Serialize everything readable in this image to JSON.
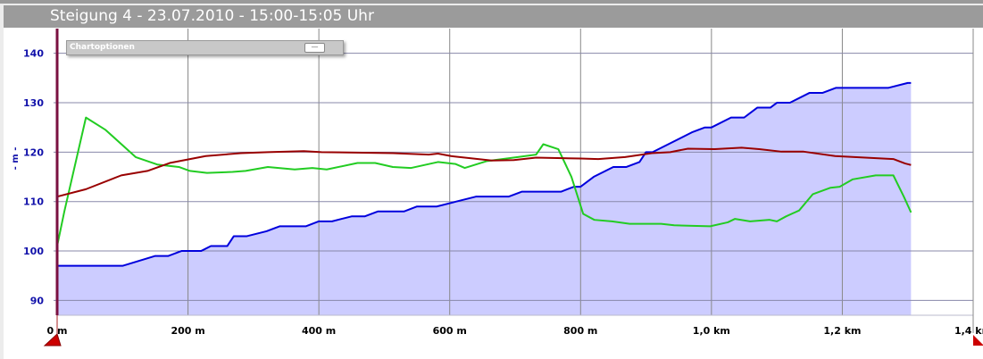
{
  "header": {
    "title": "Steigung 4 - 23.07.2010 - 15:00-15:05 Uhr"
  },
  "chart_options": {
    "label": "Chartoptionen",
    "collapse_button": "—"
  },
  "chart_data": {
    "type": "line",
    "title": "",
    "ylabel": "- m -",
    "xlim": [
      0,
      1400
    ],
    "ylim": [
      87,
      145
    ],
    "x_ticks": [
      0,
      200,
      400,
      600,
      800,
      1000,
      1200,
      1400
    ],
    "x_tick_labels": [
      "0 m",
      "200 m",
      "400 m",
      "600 m",
      "800 m",
      "1,0 km",
      "1,2 km",
      "1,4 km"
    ],
    "y_ticks": [
      90,
      100,
      110,
      120,
      130,
      140
    ],
    "y_tick_labels": [
      "90",
      "100",
      "110",
      "120",
      "130",
      "140"
    ],
    "grid": true,
    "colors": {
      "elevation_line": "#0000dd",
      "elevation_fill": "#ccccff",
      "green": "#22cc22",
      "red": "#990000",
      "ylabel": "#1111aa"
    },
    "series": [
      {
        "type": "area",
        "color": "#0000dd",
        "x": [
          0,
          100,
          150,
          170,
          190,
          220,
          235,
          260,
          270,
          290,
          320,
          340,
          380,
          400,
          420,
          450,
          470,
          490,
          530,
          550,
          580,
          610,
          640,
          690,
          710,
          770,
          790,
          800,
          820,
          850,
          870,
          890,
          900,
          910,
          970,
          990,
          1000,
          1030,
          1050,
          1070,
          1090,
          1100,
          1120,
          1150,
          1170,
          1190,
          1220,
          1270,
          1300,
          1305
        ],
        "y": [
          97,
          97,
          99,
          99,
          100,
          100,
          101,
          101,
          103,
          103,
          104,
          105,
          105,
          106,
          106,
          107,
          107,
          108,
          108,
          109,
          109,
          110,
          111,
          111,
          112,
          112,
          113,
          113,
          115,
          117,
          117,
          118,
          120,
          120,
          124,
          125,
          125,
          127,
          127,
          129,
          129,
          130,
          130,
          132,
          132,
          133,
          133,
          133,
          134,
          134
        ]
      },
      {
        "type": "line",
        "color": "#22cc22",
        "x": [
          0,
          11,
          44,
          74,
          120,
          153,
          186,
          203,
          229,
          268,
          288,
          322,
          363,
          390,
          412,
          459,
          486,
          513,
          541,
          582,
          609,
          623,
          657,
          704,
          732,
          743,
          766,
          786,
          804,
          821,
          848,
          875,
          923,
          943,
          971,
          998,
          1025,
          1036,
          1059,
          1089,
          1100,
          1114,
          1134,
          1155,
          1182,
          1196,
          1216,
          1251,
          1278,
          1294,
          1305
        ],
        "y": [
          101,
          108,
          127,
          124.5,
          119,
          117.5,
          117,
          116.2,
          115.8,
          116,
          116.2,
          117,
          116.5,
          116.8,
          116.5,
          117.8,
          117.8,
          117,
          116.8,
          118,
          117.6,
          116.8,
          118.2,
          119,
          119.5,
          121.6,
          120.6,
          115,
          107.5,
          106.3,
          106,
          105.5,
          105.5,
          105.2,
          105.1,
          105,
          105.8,
          106.5,
          106,
          106.3,
          106,
          107,
          108.2,
          111.5,
          112.8,
          113,
          114.5,
          115.3,
          115.3,
          111,
          107.8
        ]
      },
      {
        "type": "line",
        "color": "#990000",
        "x": [
          0,
          44,
          98,
          138,
          172,
          227,
          281,
          322,
          377,
          404,
          513,
          568,
          582,
          602,
          664,
          698,
          732,
          800,
          827,
          868,
          909,
          937,
          964,
          1005,
          1046,
          1073,
          1107,
          1141,
          1189,
          1278,
          1296,
          1305
        ],
        "y": [
          111,
          112.5,
          115.3,
          116.2,
          117.8,
          119.2,
          119.8,
          120,
          120.2,
          120,
          119.8,
          119.5,
          119.7,
          119.2,
          118.3,
          118.4,
          118.9,
          118.7,
          118.6,
          119,
          119.8,
          120,
          120.7,
          120.6,
          120.9,
          120.6,
          120.1,
          120.1,
          119.2,
          118.6,
          117.7,
          117.4
        ]
      }
    ]
  }
}
